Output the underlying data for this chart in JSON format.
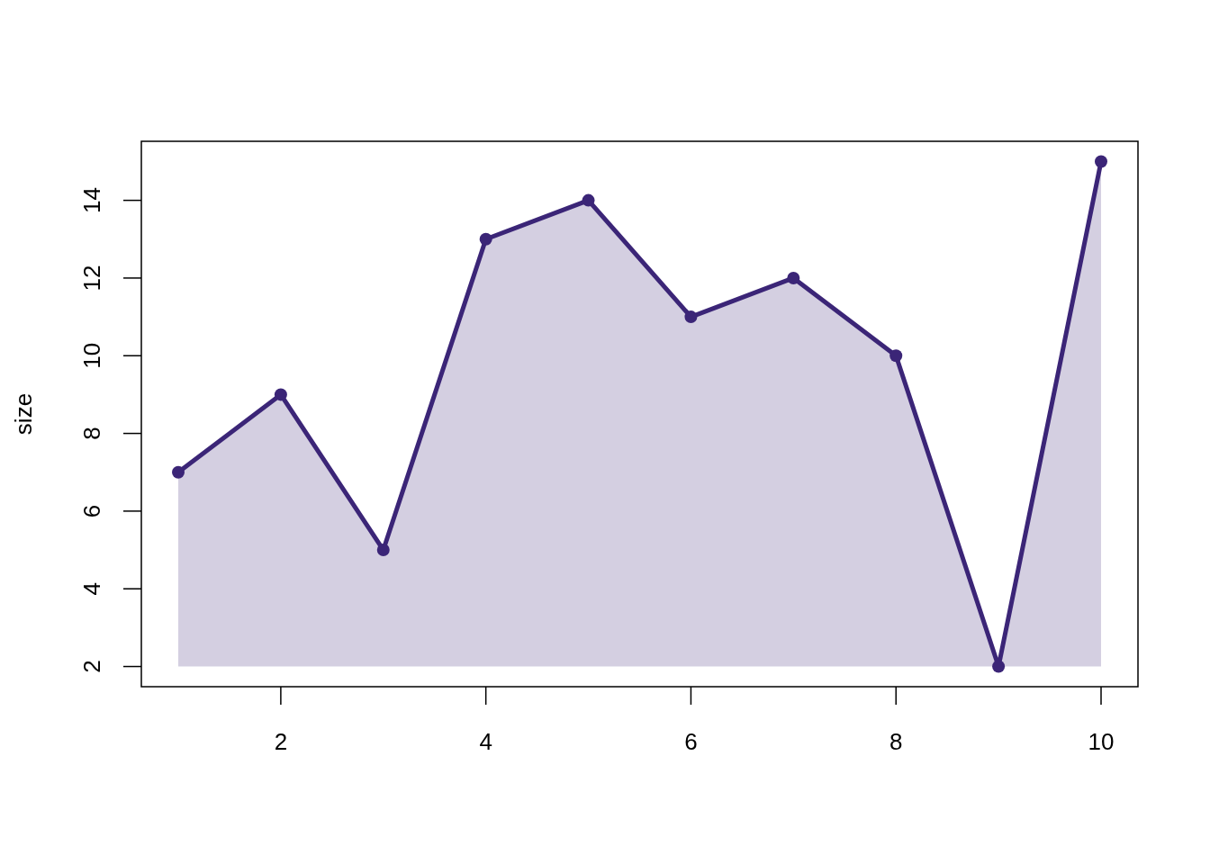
{
  "chart_data": {
    "type": "area",
    "ylabel": "size",
    "x": [
      1,
      2,
      3,
      4,
      5,
      6,
      7,
      8,
      9,
      10
    ],
    "series": [
      {
        "color": "#3b2577",
        "values": [
          7,
          9,
          5,
          13,
          14,
          11,
          12,
          10,
          2,
          15
        ]
      }
    ],
    "xlim": [
      0.64,
      10.36
    ],
    "ylim": [
      1.48,
      15.52
    ],
    "xticks": [
      2,
      4,
      6,
      8,
      10
    ],
    "yticks": [
      2,
      4,
      6,
      8,
      10,
      12,
      14
    ],
    "marker": "circle",
    "line_style": "solid"
  }
}
